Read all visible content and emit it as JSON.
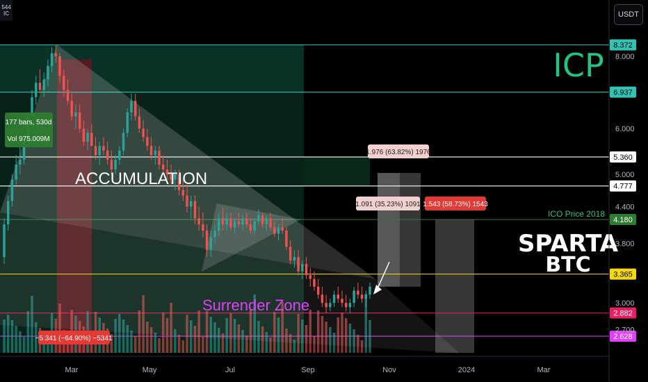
{
  "toolbar": {
    "currency_label": "USDT"
  },
  "symbol_badge": {
    "line1": "544",
    "line2": "IC"
  },
  "chart_data": {
    "type": "candlestick",
    "title": "ICP",
    "title_color": "#26c281",
    "watermark": "SPARTA BTC",
    "x_tick_labels": [
      "Mar",
      "May",
      "Jul",
      "Sep",
      "Nov",
      "2024",
      "Mar"
    ],
    "y_tick_labels": [
      "8.000",
      "6.000",
      "5.000",
      "4.400",
      "3.800",
      "3.000",
      "2.700"
    ],
    "y_scale": "log",
    "y_range": [
      2.45,
      8.6
    ],
    "horizontal_levels": [
      {
        "value": 8.372,
        "label": "8.372",
        "color": "#2ec4b6"
      },
      {
        "value": 6.937,
        "label": "6.937",
        "color": "#2ec4b6"
      },
      {
        "value": 5.36,
        "label": "5.360",
        "color": "#ffffff"
      },
      {
        "value": 4.777,
        "label": "4.777",
        "color": "#ffffff"
      },
      {
        "value": 4.18,
        "label": "4.180",
        "color": "#2e7d32",
        "caption": "ICO Price 2018"
      },
      {
        "value": 3.365,
        "label": "3.365",
        "color": "#f5d90a"
      },
      {
        "value": 2.882,
        "label": "2.882",
        "color": "#e91e63"
      },
      {
        "value": 2.628,
        "label": "2.628",
        "color": "#e040fb"
      }
    ],
    "annotations": {
      "accumulation": "ACCUMULATION",
      "surrender_zone": "Surrender Zone",
      "bars_info": "177 bars, 530d",
      "vol_info": "Vol 975.009M",
      "drop_measure": "−5.341 (−64.90%) −5341",
      "measure_1": "1.976 (63.82%) 1976",
      "measure_2": "1.091 (35.23%) 1091",
      "measure_3": "1.543 (58.73%) 1543"
    },
    "colors": {
      "up": "#26a69a",
      "down": "#ef5350",
      "accent_green": "#26c281",
      "magenta": "#e040fb",
      "pink": "#e91e63",
      "yellow": "#f5d90a"
    },
    "candles": [
      [
        3.6,
        4.2,
        3.5,
        4.1
      ],
      [
        4.1,
        4.6,
        4.0,
        4.5
      ],
      [
        4.5,
        5.0,
        4.4,
        4.9
      ],
      [
        4.9,
        5.4,
        4.8,
        5.2
      ],
      [
        5.2,
        5.6,
        5.0,
        5.3
      ],
      [
        5.3,
        5.9,
        5.2,
        5.8
      ],
      [
        5.8,
        6.4,
        5.7,
        6.3
      ],
      [
        6.3,
        7.0,
        6.2,
        6.8
      ],
      [
        6.8,
        7.4,
        6.6,
        7.2
      ],
      [
        7.2,
        7.6,
        6.9,
        7.0
      ],
      [
        7.0,
        7.5,
        6.8,
        7.3
      ],
      [
        7.3,
        7.9,
        7.1,
        7.7
      ],
      [
        7.7,
        8.3,
        7.5,
        8.1
      ],
      [
        8.1,
        8.37,
        7.8,
        8.0
      ],
      [
        8.0,
        8.1,
        7.2,
        7.4
      ],
      [
        7.4,
        7.6,
        6.8,
        7.0
      ],
      [
        7.0,
        7.3,
        6.6,
        6.7
      ],
      [
        6.7,
        6.9,
        6.2,
        6.3
      ],
      [
        6.3,
        6.6,
        6.0,
        6.4
      ],
      [
        6.4,
        6.6,
        5.9,
        6.0
      ],
      [
        6.0,
        6.2,
        5.6,
        5.7
      ],
      [
        5.7,
        6.0,
        5.5,
        5.9
      ],
      [
        5.9,
        6.1,
        5.6,
        5.6
      ],
      [
        5.6,
        5.8,
        5.3,
        5.4
      ],
      [
        5.4,
        5.7,
        5.2,
        5.6
      ],
      [
        5.6,
        5.8,
        5.4,
        5.5
      ],
      [
        5.5,
        5.7,
        5.2,
        5.3
      ],
      [
        5.3,
        5.5,
        5.0,
        5.1
      ],
      [
        5.1,
        5.4,
        5.0,
        5.3
      ],
      [
        5.3,
        5.6,
        5.2,
        5.5
      ],
      [
        5.5,
        6.0,
        5.4,
        5.9
      ],
      [
        5.9,
        6.5,
        5.8,
        6.4
      ],
      [
        6.4,
        6.9,
        6.2,
        6.7
      ],
      [
        6.7,
        6.9,
        6.2,
        6.3
      ],
      [
        6.3,
        6.5,
        5.9,
        6.0
      ],
      [
        6.0,
        6.2,
        5.7,
        5.8
      ],
      [
        5.8,
        6.0,
        5.5,
        5.6
      ],
      [
        5.6,
        5.8,
        5.3,
        5.4
      ],
      [
        5.4,
        5.6,
        5.2,
        5.5
      ],
      [
        5.5,
        5.6,
        5.1,
        5.2
      ],
      [
        5.2,
        5.4,
        5.0,
        5.1
      ],
      [
        5.1,
        5.3,
        4.9,
        5.0
      ],
      [
        5.0,
        5.2,
        4.8,
        4.9
      ],
      [
        4.9,
        5.1,
        4.7,
        5.0
      ],
      [
        5.0,
        5.1,
        4.6,
        4.7
      ],
      [
        4.7,
        4.9,
        4.5,
        4.6
      ],
      [
        4.6,
        4.8,
        4.3,
        4.4
      ],
      [
        4.4,
        4.6,
        4.2,
        4.5
      ],
      [
        4.5,
        4.6,
        4.1,
        4.2
      ],
      [
        4.2,
        4.4,
        4.0,
        4.1
      ],
      [
        4.1,
        4.3,
        3.9,
        4.0
      ],
      [
        4.0,
        4.1,
        3.6,
        3.7
      ],
      [
        3.7,
        4.0,
        3.6,
        3.9
      ],
      [
        3.9,
        4.1,
        3.8,
        4.0
      ],
      [
        4.0,
        4.3,
        3.9,
        4.2
      ],
      [
        4.2,
        4.4,
        4.0,
        4.1
      ],
      [
        4.1,
        4.3,
        4.0,
        4.2
      ],
      [
        4.2,
        4.3,
        4.0,
        4.05
      ],
      [
        4.05,
        4.2,
        3.95,
        4.15
      ],
      [
        4.15,
        4.3,
        4.05,
        4.1
      ],
      [
        4.1,
        4.25,
        4.0,
        4.2
      ],
      [
        4.2,
        4.3,
        4.05,
        4.1
      ],
      [
        4.1,
        4.2,
        3.95,
        4.0
      ],
      [
        4.0,
        4.2,
        3.95,
        4.15
      ],
      [
        4.15,
        4.35,
        4.1,
        4.25
      ],
      [
        4.25,
        4.3,
        4.05,
        4.1
      ],
      [
        4.1,
        4.25,
        4.0,
        4.2
      ],
      [
        4.2,
        4.3,
        4.0,
        4.05
      ],
      [
        4.05,
        4.15,
        3.9,
        3.95
      ],
      [
        3.95,
        4.1,
        3.85,
        4.05
      ],
      [
        4.05,
        4.2,
        3.95,
        4.0
      ],
      [
        4.0,
        4.05,
        3.7,
        3.75
      ],
      [
        3.75,
        3.85,
        3.5,
        3.55
      ],
      [
        3.55,
        3.7,
        3.45,
        3.6
      ],
      [
        3.6,
        3.7,
        3.35,
        3.4
      ],
      [
        3.4,
        3.55,
        3.3,
        3.5
      ],
      [
        3.5,
        3.6,
        3.3,
        3.35
      ],
      [
        3.35,
        3.45,
        3.2,
        3.3
      ],
      [
        3.3,
        3.4,
        3.15,
        3.2
      ],
      [
        3.2,
        3.3,
        3.05,
        3.1
      ],
      [
        3.1,
        3.2,
        2.95,
        3.0
      ],
      [
        3.0,
        3.1,
        2.88,
        2.95
      ],
      [
        2.95,
        3.05,
        2.9,
        3.0
      ],
      [
        3.0,
        3.15,
        2.95,
        3.1
      ],
      [
        3.1,
        3.2,
        3.0,
        3.05
      ],
      [
        3.05,
        3.15,
        2.95,
        3.0
      ],
      [
        3.0,
        3.1,
        2.9,
        2.95
      ],
      [
        2.95,
        3.05,
        2.88,
        3.0
      ],
      [
        3.0,
        3.2,
        2.95,
        3.15
      ],
      [
        3.15,
        3.25,
        3.05,
        3.1
      ],
      [
        3.1,
        3.2,
        3.0,
        3.05
      ],
      [
        3.05,
        3.15,
        2.95,
        3.1
      ],
      [
        3.1,
        3.25,
        3.05,
        3.2
      ]
    ]
  }
}
